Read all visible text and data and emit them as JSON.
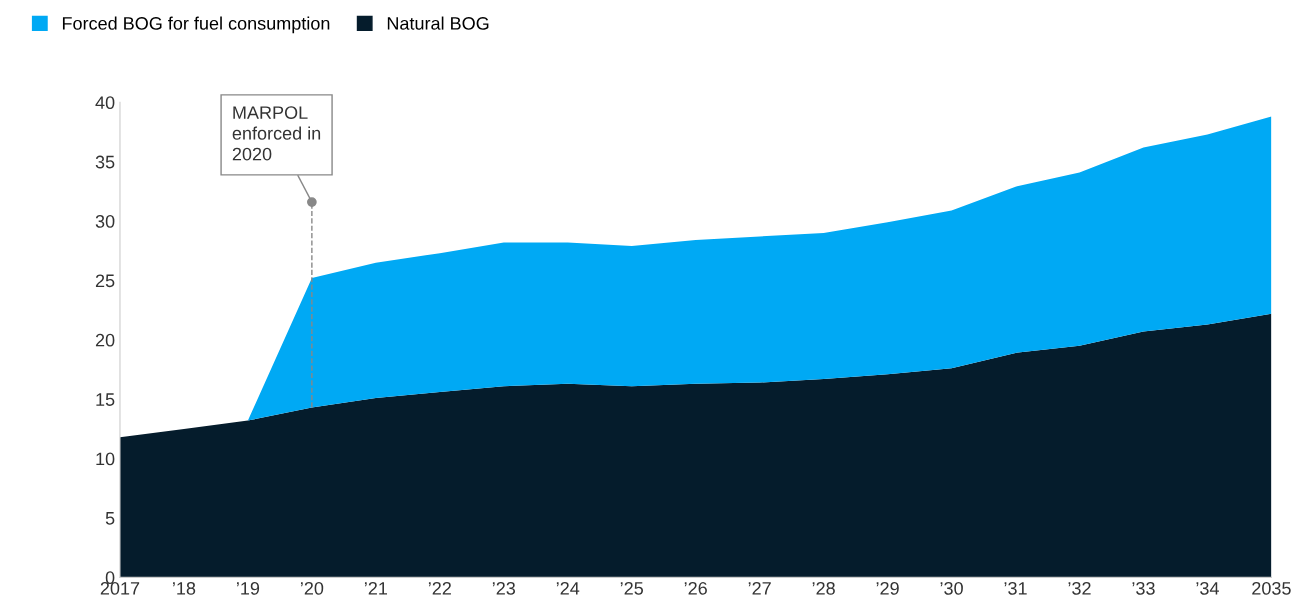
{
  "chart_data": {
    "type": "area",
    "stacked": true,
    "categories": [
      "2017",
      "’18",
      "’19",
      "’20",
      "’21",
      "’22",
      "’23",
      "’24",
      "’25",
      "’26",
      "’27",
      "’28",
      "’29",
      "’30",
      "’31",
      "’32",
      "’33",
      "’34",
      "2035"
    ],
    "series": [
      {
        "name": "Natural BOG",
        "color": "#051c2c",
        "values": [
          11.8,
          12.5,
          13.2,
          14.3,
          15.1,
          15.6,
          16.1,
          16.3,
          16.1,
          16.3,
          16.4,
          16.7,
          17.1,
          17.6,
          18.9,
          19.5,
          20.7,
          21.3,
          22.2
        ]
      },
      {
        "name": "Forced BOG for fuel consumption",
        "color": "#00a9f4",
        "values": [
          0,
          0,
          0,
          10.9,
          11.4,
          11.7,
          12.1,
          11.9,
          11.8,
          12.1,
          12.3,
          12.3,
          12.8,
          13.3,
          14.0,
          14.6,
          15.5,
          16.0,
          16.6
        ]
      }
    ],
    "ylim": [
      0,
      40
    ],
    "yticks": [
      0,
      5,
      10,
      15,
      20,
      25,
      30,
      35,
      40
    ],
    "grid": false,
    "legend": "top left",
    "annotations": [
      {
        "text": "MARPOL\nenforced in\n2020",
        "x": "’20",
        "y": 31.6
      }
    ]
  }
}
